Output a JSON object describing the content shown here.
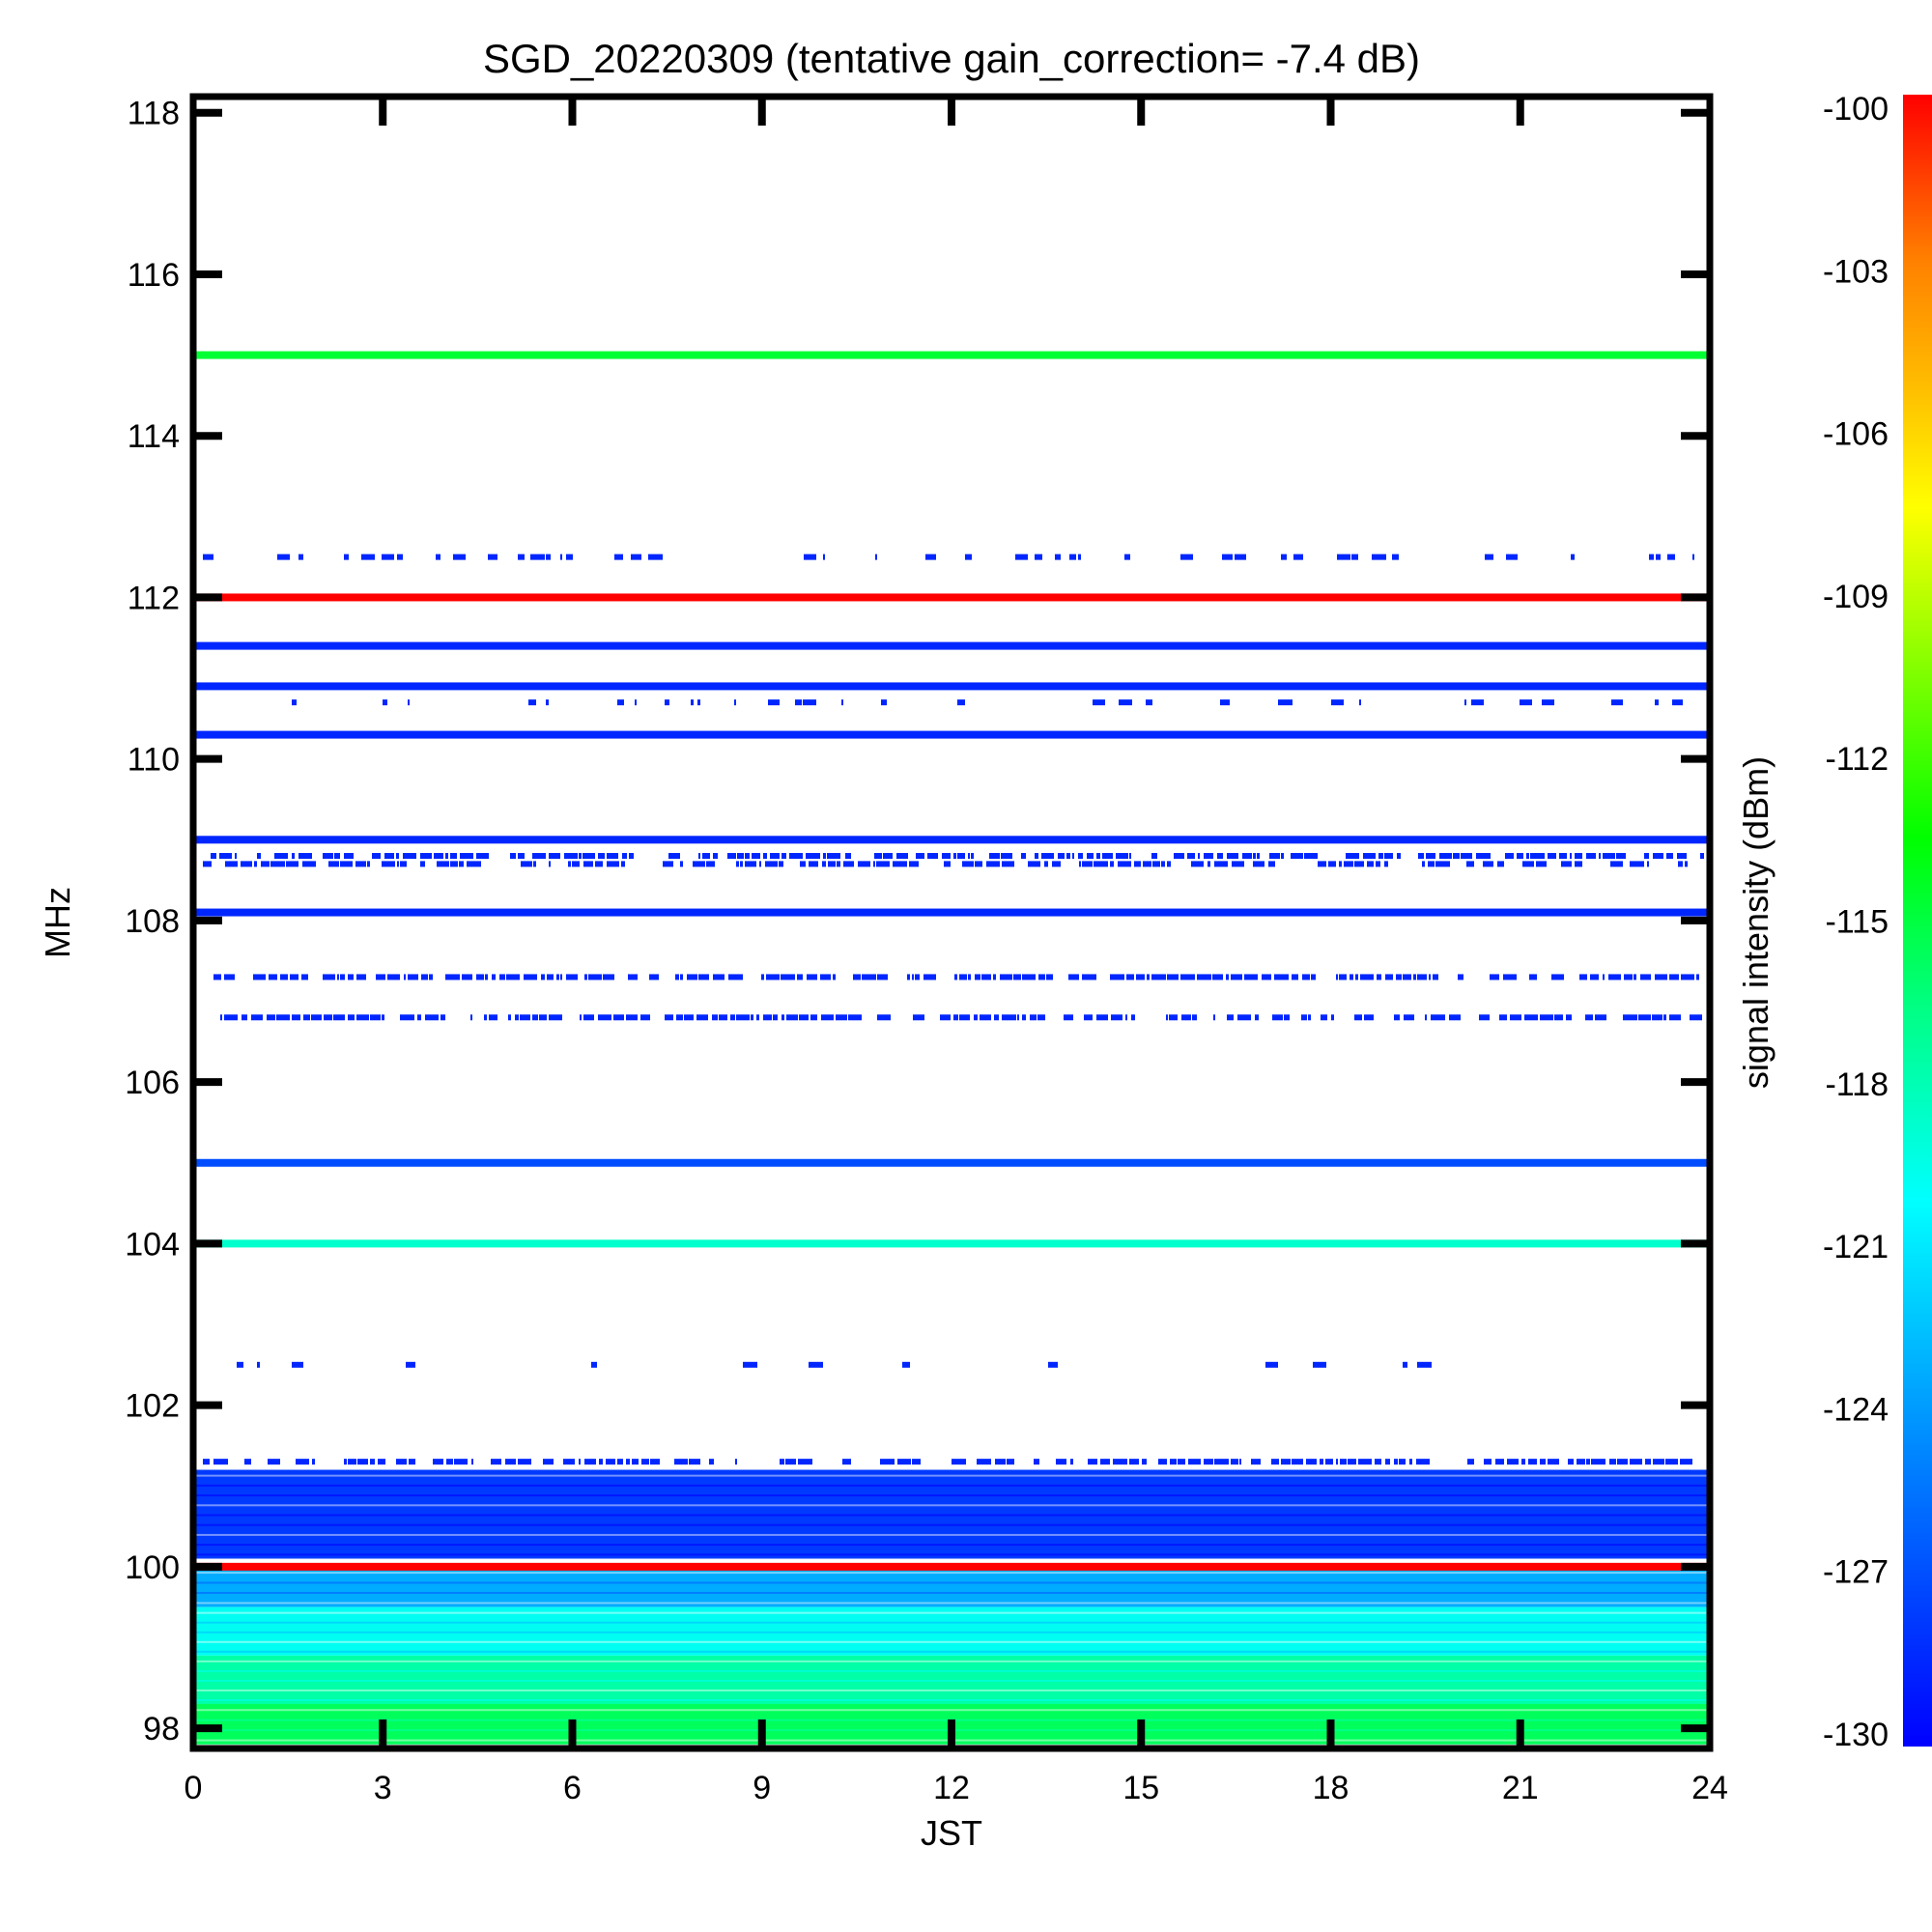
{
  "chart_data": {
    "type": "heatmap",
    "title": "SGD_20220309 (tentative gain_correction= -7.4 dB)",
    "xlabel": "JST",
    "ylabel": "MHz",
    "colorbar_label": "signal intensity (dBm)",
    "xlim": [
      0,
      24
    ],
    "ylim": [
      97.75,
      118.2
    ],
    "x_ticks": [
      "0",
      "3",
      "6",
      "9",
      "12",
      "15",
      "18",
      "21",
      "24"
    ],
    "y_ticks": [
      "98",
      "100",
      "102",
      "104",
      "106",
      "108",
      "110",
      "112",
      "114",
      "116",
      "118"
    ],
    "colorbar_range": [
      -130,
      -100
    ],
    "colorbar_ticks": [
      "-100",
      "-103",
      "-106",
      "-109",
      "-112",
      "-115",
      "-118",
      "-121",
      "-124",
      "-127",
      "-130"
    ],
    "colormap": [
      "#0000ff",
      "#0080ff",
      "#00ffff",
      "#00ff80",
      "#00ff00",
      "#80ff00",
      "#ffff00",
      "#ffc000",
      "#ff8000",
      "#ff0000"
    ],
    "continuous_bands": [
      {
        "freq_mhz": 115.0,
        "dbm": -118
      },
      {
        "freq_mhz": 112.0,
        "dbm": -100
      },
      {
        "freq_mhz": 111.4,
        "dbm": -129
      },
      {
        "freq_mhz": 110.9,
        "dbm": -129
      },
      {
        "freq_mhz": 110.3,
        "dbm": -129
      },
      {
        "freq_mhz": 109.0,
        "dbm": -129
      },
      {
        "freq_mhz": 108.1,
        "dbm": -129
      },
      {
        "freq_mhz": 105.0,
        "dbm": -128
      },
      {
        "freq_mhz": 104.0,
        "dbm": -122
      },
      {
        "freq_mhz": 100.0,
        "dbm": -100
      }
    ],
    "intermittent_bands": [
      {
        "freq_mhz": 112.5,
        "dbm": -129,
        "occupancy": 0.45
      },
      {
        "freq_mhz": 110.7,
        "dbm": -129,
        "occupancy": 0.35
      },
      {
        "freq_mhz": 108.8,
        "dbm": -129,
        "occupancy": 0.75
      },
      {
        "freq_mhz": 108.7,
        "dbm": -129,
        "occupancy": 0.7
      },
      {
        "freq_mhz": 107.3,
        "dbm": -129,
        "occupancy": 0.85
      },
      {
        "freq_mhz": 106.8,
        "dbm": -129,
        "occupancy": 0.8
      },
      {
        "freq_mhz": 102.5,
        "dbm": -129,
        "occupancy": 0.2
      },
      {
        "freq_mhz": 101.3,
        "dbm": -129,
        "occupancy": 0.8
      }
    ],
    "noise_floor": [
      {
        "from_mhz": 101.2,
        "to_mhz": 100.1,
        "dbm": -128.5
      },
      {
        "from_mhz": 100.0,
        "to_mhz": 99.5,
        "dbm": -125.5
      },
      {
        "from_mhz": 99.5,
        "to_mhz": 98.9,
        "dbm": -123
      },
      {
        "from_mhz": 98.9,
        "to_mhz": 98.3,
        "dbm": -121
      },
      {
        "from_mhz": 98.3,
        "to_mhz": 97.8,
        "dbm": -119
      }
    ]
  }
}
